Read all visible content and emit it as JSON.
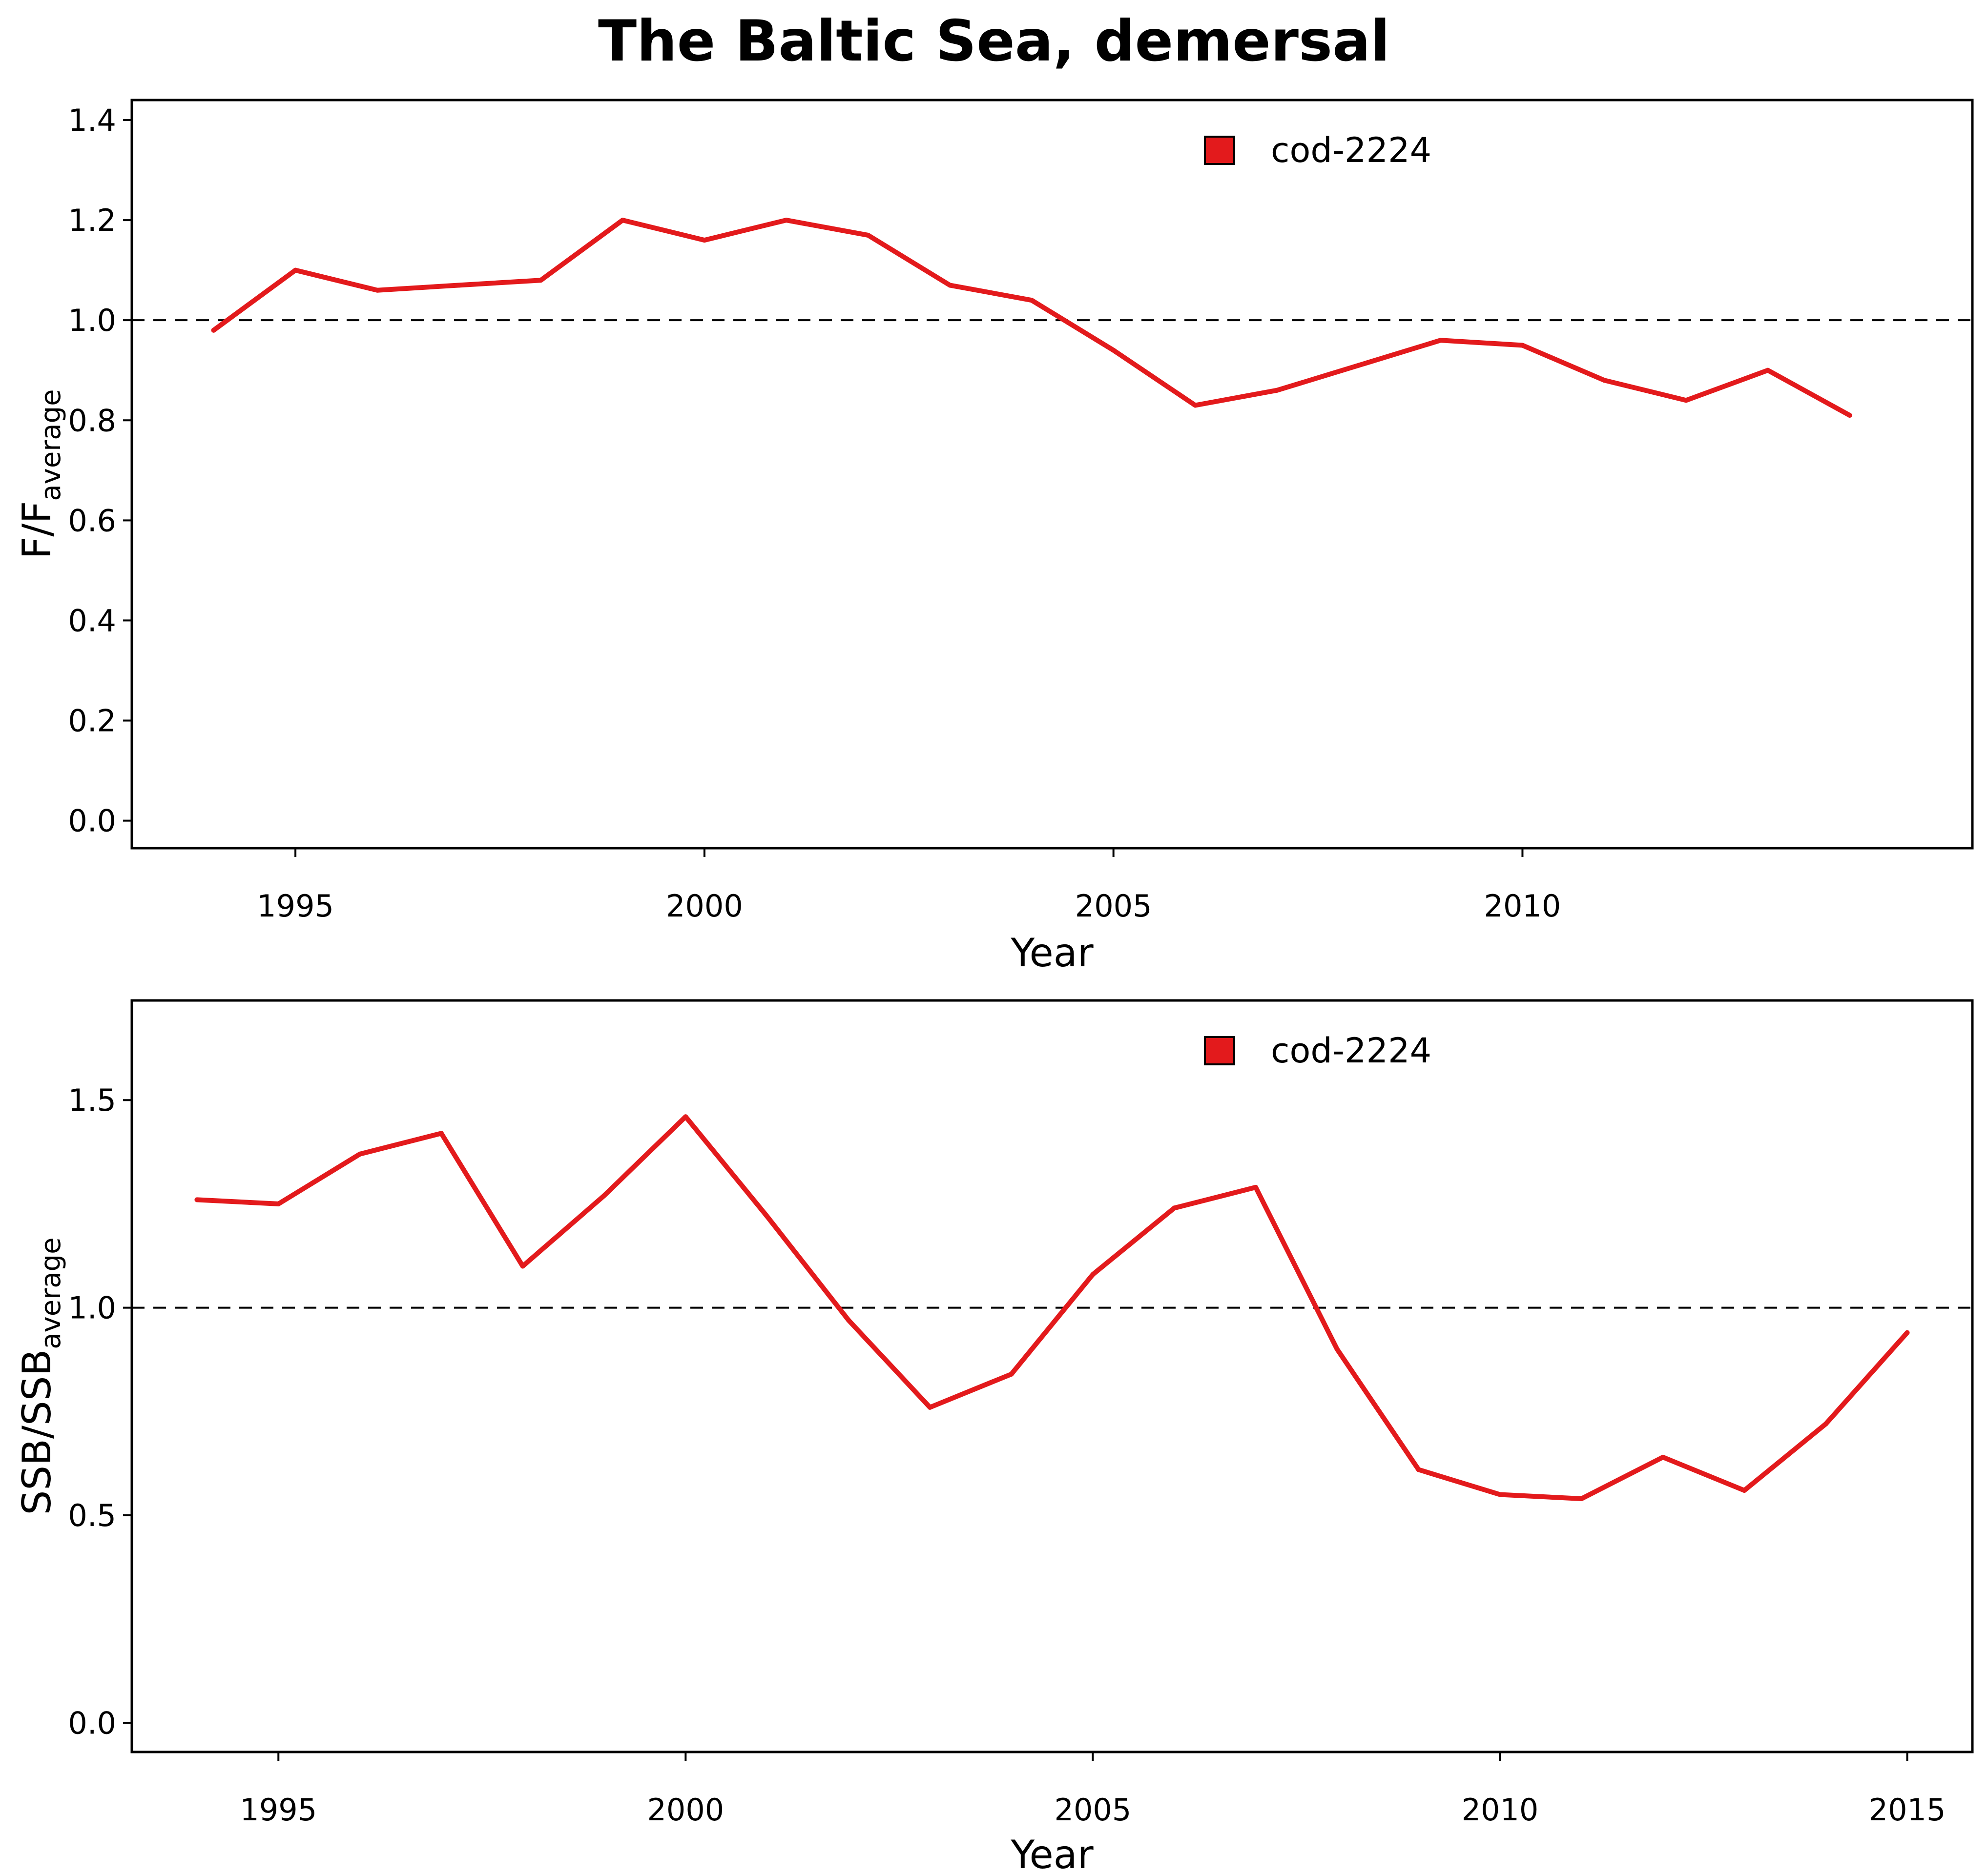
{
  "title": "The Baltic Sea, demersal",
  "chart_data": [
    {
      "type": "line",
      "xlabel": "Year",
      "ylabel": "F/F",
      "ylabel_sub": "average",
      "xlim": [
        1993.0,
        2015.5
      ],
      "ylim": [
        -0.055,
        1.44
      ],
      "xticks": [
        1995,
        2000,
        2005,
        2010
      ],
      "yticks": [
        0.0,
        0.2,
        0.4,
        0.6,
        0.8,
        1.0,
        1.2,
        1.4
      ],
      "ytick_labels": [
        "0.0",
        "0.2",
        "0.4",
        "0.6",
        "0.8",
        "1.0",
        "1.2",
        "1.4"
      ],
      "reference_line": 1.0,
      "legend_position": "top-center",
      "series": [
        {
          "name": "cod-2224",
          "color": "#e31a1c",
          "x": [
            1994,
            1995,
            1996,
            1997,
            1998,
            1999,
            2000,
            2001,
            2002,
            2003,
            2004,
            2005,
            2006,
            2007,
            2008,
            2009,
            2010,
            2011,
            2012,
            2013,
            2014
          ],
          "y": [
            0.98,
            1.1,
            1.06,
            1.07,
            1.08,
            1.2,
            1.16,
            1.2,
            1.17,
            1.07,
            1.04,
            0.94,
            0.83,
            0.86,
            0.91,
            0.96,
            0.95,
            0.88,
            0.84,
            0.9,
            0.81
          ]
        }
      ]
    },
    {
      "type": "line",
      "xlabel": "Year",
      "ylabel": "SSB/SSB",
      "ylabel_sub": "average",
      "xlim": [
        1993.2,
        2015.8
      ],
      "ylim": [
        -0.07,
        1.74
      ],
      "xticks": [
        1995,
        2000,
        2005,
        2010,
        2015
      ],
      "yticks": [
        0.0,
        0.5,
        1.0,
        1.5
      ],
      "ytick_labels": [
        "0.0",
        "0.5",
        "1.0",
        "1.5"
      ],
      "reference_line": 1.0,
      "legend_position": "top-center",
      "series": [
        {
          "name": "cod-2224",
          "color": "#e31a1c",
          "x": [
            1994,
            1995,
            1996,
            1997,
            1998,
            1999,
            2000,
            2001,
            2002,
            2003,
            2004,
            2005,
            2006,
            2007,
            2008,
            2009,
            2010,
            2011,
            2012,
            2013,
            2014,
            2015
          ],
          "y": [
            1.26,
            1.25,
            1.37,
            1.42,
            1.1,
            1.27,
            1.46,
            1.22,
            0.97,
            0.76,
            0.84,
            1.08,
            1.24,
            1.29,
            0.9,
            0.61,
            0.55,
            0.54,
            0.64,
            0.56,
            0.72,
            0.94
          ]
        }
      ]
    }
  ]
}
